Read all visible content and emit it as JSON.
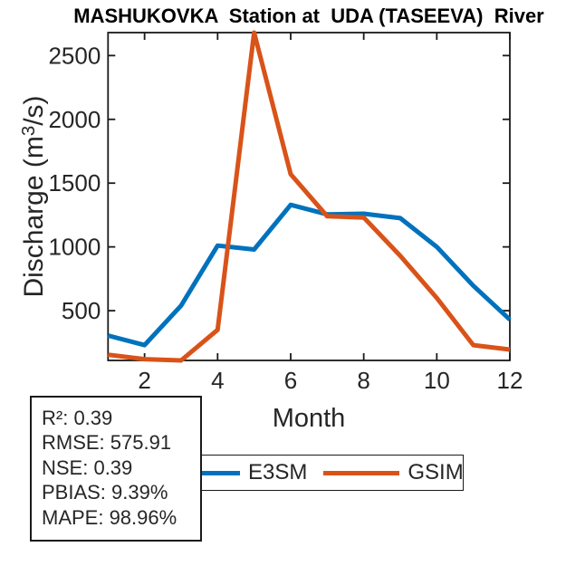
{
  "title": "MASHUKOVKA  Station at  UDA (TASEEVA)  River",
  "chart_data": {
    "type": "line",
    "title": "MASHUKOVKA  Station at  UDA (TASEEVA)  River",
    "xlabel": "Month",
    "ylabel": "Discharge (m^3/s)",
    "ylabel_parts": {
      "prefix": "Discharge (m",
      "sup": "3",
      "suffix": "/s)"
    },
    "x": [
      1,
      2,
      3,
      4,
      5,
      6,
      7,
      8,
      9,
      10,
      11,
      12
    ],
    "xlim": [
      1,
      12
    ],
    "ylim": [
      110,
      2680
    ],
    "xticks": [
      2,
      4,
      6,
      8,
      10,
      12
    ],
    "yticks": [
      500,
      1000,
      1500,
      2000,
      2500
    ],
    "grid": false,
    "legend_position": "below-axis",
    "series": [
      {
        "name": "E3SM",
        "color": "#0072BD",
        "values": [
          305,
          230,
          540,
          1010,
          980,
          1330,
          1255,
          1260,
          1225,
          1000,
          695,
          430
        ]
      },
      {
        "name": "GSIM",
        "color": "#D95319",
        "values": [
          155,
          120,
          110,
          350,
          2680,
          1570,
          1240,
          1230,
          930,
          600,
          230,
          195
        ]
      }
    ]
  },
  "stats_box": {
    "lines": [
      "R²: 0.39",
      "RMSE: 575.91",
      "NSE: 0.39",
      "PBIAS: 9.39%",
      "MAPE: 98.96%"
    ]
  },
  "legend": {
    "items": [
      {
        "label": "E3SM",
        "color": "#0072BD"
      },
      {
        "label": "GSIM",
        "color": "#D95319"
      }
    ]
  },
  "colors": {
    "axis": "#1a1a1a",
    "text": "#262626",
    "background": "#ffffff",
    "series_blue": "#0072BD",
    "series_orange": "#D95319"
  }
}
